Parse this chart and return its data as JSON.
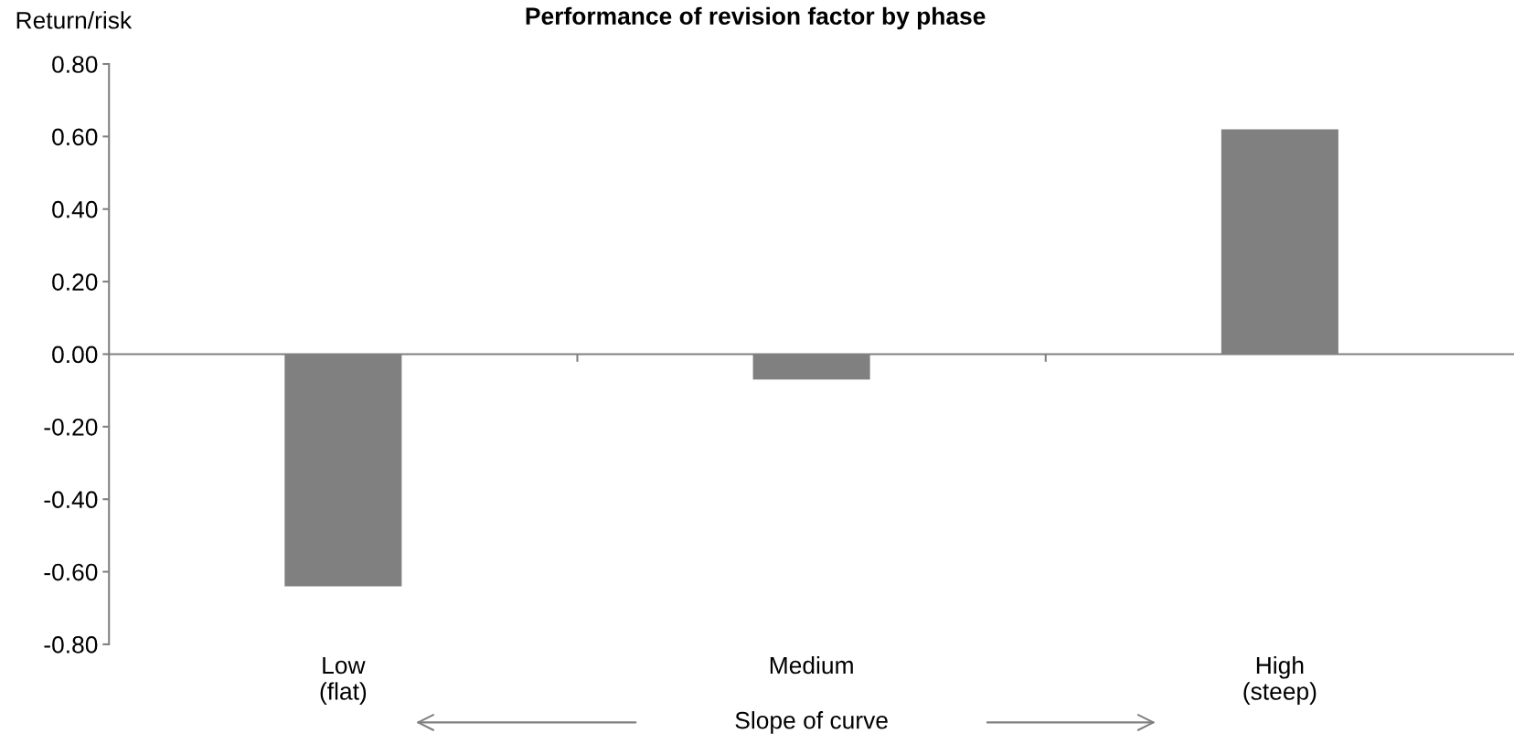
{
  "chart_data": {
    "type": "bar",
    "title": "Performance of revision factor by phase",
    "ylabel": "Return/risk",
    "categories": [
      "Low\n(flat)",
      "Medium",
      "High\n(steep)"
    ],
    "values": [
      -0.64,
      -0.07,
      0.62
    ],
    "color": "#808080",
    "ylim": [
      -0.8,
      0.8
    ],
    "yticks": [
      {
        "value": 0.8,
        "label": "0.80"
      },
      {
        "value": 0.6,
        "label": "0.60"
      },
      {
        "value": 0.4,
        "label": "0.40"
      },
      {
        "value": 0.2,
        "label": "0.20"
      },
      {
        "value": 0,
        "label": "0.00"
      },
      {
        "value": -0.2,
        "label": "-0.20"
      },
      {
        "value": -0.4,
        "label": "-0.40"
      },
      {
        "value": -0.6,
        "label": "-0.60"
      },
      {
        "value": -0.8,
        "label": "-0.80"
      }
    ],
    "annotations": [
      "Slope of curve"
    ]
  }
}
